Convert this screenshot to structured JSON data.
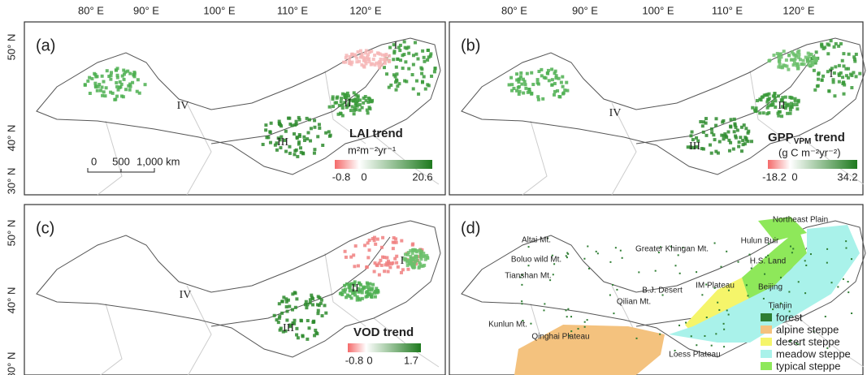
{
  "x_axis_labels": [
    "80° E",
    "90° E",
    "100° E",
    "110° E",
    "120° E"
  ],
  "y_axis_labels": [
    "50° N",
    "40° N",
    "30° N"
  ],
  "panels": [
    {
      "label": "(a)",
      "regions": [
        "I",
        "II",
        "III",
        "IV"
      ],
      "legend": {
        "title": "LAI  trend",
        "unit": "m²m⁻²yr⁻¹",
        "min": "-0.8",
        "mid": "0",
        "max": "20.6"
      },
      "scale_bar": [
        "0",
        "500",
        "1,000 km"
      ]
    },
    {
      "label": "(b)",
      "regions": [
        "I",
        "II",
        "III",
        "IV"
      ],
      "legend": {
        "title": "GPP",
        "title_sub": "VPM",
        "title_suffix": "trend",
        "unit": "(g C m⁻²yr⁻²)",
        "min": "-18.2",
        "mid": "0",
        "max": "34.2"
      }
    },
    {
      "label": "(c)",
      "regions": [
        "I",
        "II",
        "III",
        "IV"
      ],
      "legend": {
        "title": "VOD trend",
        "min": "-0.8",
        "mid": "0",
        "max": "1.7"
      }
    },
    {
      "label": "(d)",
      "places": [
        "Altai Mt.",
        "Boluo wild Mt.",
        "Tianshan Mt.",
        "Kunlun Mt.",
        "Qinghai Plateau",
        "Qilian Mt.",
        "B.J. Desert",
        "IM Plateau",
        "Loess Plateau",
        "Hulun Buir",
        "Northeast Plain",
        "Greater Khingan Mt.",
        "H.S. Land",
        "Beijing",
        "Tianjin"
      ],
      "legend": [
        {
          "name": "forest",
          "color": "#2e7d32"
        },
        {
          "name": "alpine steppe",
          "color": "#f4c27e"
        },
        {
          "name": "desert steppe",
          "color": "#f5f56a"
        },
        {
          "name": "meadow steppe",
          "color": "#a9f2ea"
        },
        {
          "name": "typical steppe",
          "color": "#8ee85a"
        }
      ]
    }
  ]
}
